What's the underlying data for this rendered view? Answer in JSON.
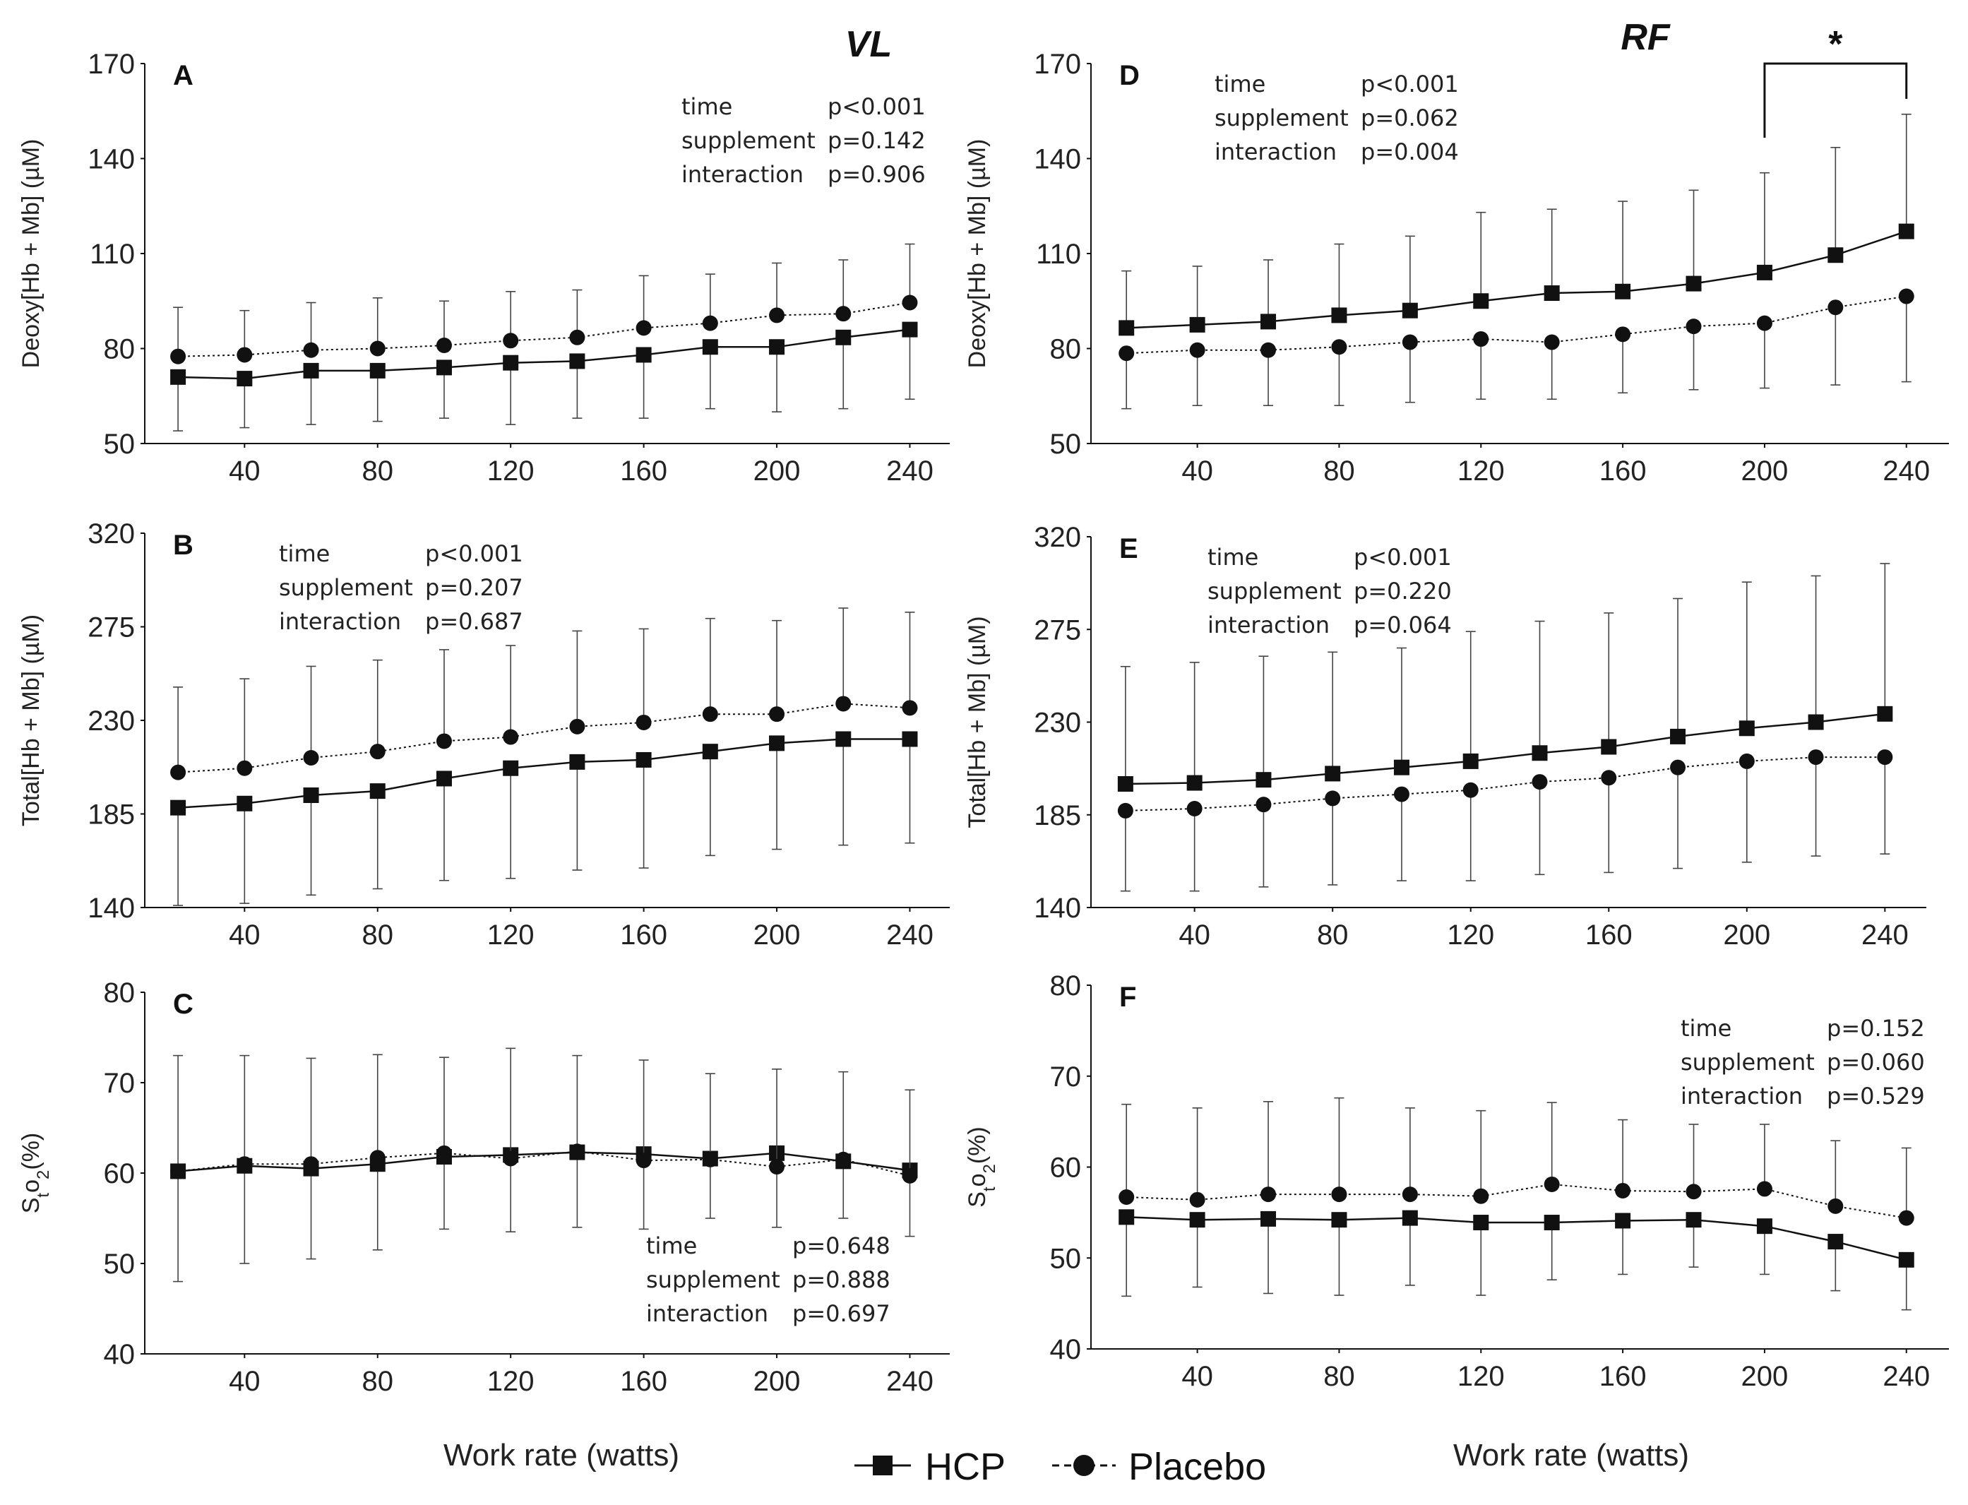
{
  "group_titles": {
    "vl": "VL",
    "rf": "RF"
  },
  "x_title_left": "Work rate (watts)",
  "x_title_right": "Work rate (watts)",
  "legend": {
    "hcp_label": "HCP",
    "placebo_label": "Placebo"
  },
  "chart_data": [
    {
      "id": "A",
      "type": "line",
      "letter": "A",
      "ylabel": "Deoxy[Hb + Mb] (µM)",
      "ylim": [
        50,
        170
      ],
      "yticks": [
        50,
        80,
        110,
        140,
        170
      ],
      "xlim": [
        10,
        252
      ],
      "xticks": [
        40,
        80,
        120,
        160,
        200,
        240
      ],
      "x": [
        20,
        40,
        60,
        80,
        100,
        120,
        140,
        160,
        180,
        200,
        220,
        240
      ],
      "stats": {
        "corner": "top-right",
        "rows": [
          [
            "time",
            "p<0.001"
          ],
          [
            "supplement",
            "p=0.142"
          ],
          [
            "interaction",
            "p=0.906"
          ]
        ]
      },
      "series": [
        {
          "name": "HCP",
          "marker": "square",
          "dash": "solid",
          "values": [
            71,
            70.5,
            73,
            73,
            74,
            75.5,
            76,
            78,
            80.5,
            80.5,
            83.5,
            86
          ],
          "err_lower": [
            54,
            55,
            56,
            57,
            58,
            56,
            58,
            58,
            61,
            60,
            61,
            64
          ]
        },
        {
          "name": "Placebo",
          "marker": "circle",
          "dash": "dotted",
          "values": [
            77.5,
            78,
            79.5,
            80,
            81,
            82.5,
            83.5,
            86.5,
            88,
            90.5,
            91,
            94.5
          ],
          "err_upper": [
            93,
            92,
            94.5,
            96,
            95,
            98,
            98.5,
            103,
            103.5,
            107,
            108,
            113
          ]
        }
      ]
    },
    {
      "id": "B",
      "type": "line",
      "letter": "B",
      "ylabel": "Total[Hb + Mb] (µM)",
      "ylim": [
        140,
        320
      ],
      "yticks": [
        140,
        185,
        230,
        275,
        320
      ],
      "xlim": [
        10,
        252
      ],
      "xticks": [
        40,
        80,
        120,
        160,
        200,
        240
      ],
      "x": [
        20,
        40,
        60,
        80,
        100,
        120,
        140,
        160,
        180,
        200,
        220,
        240
      ],
      "stats": {
        "corner": "top-left",
        "rows": [
          [
            "time",
            "p<0.001"
          ],
          [
            "supplement",
            "p=0.207"
          ],
          [
            "interaction",
            "p=0.687"
          ]
        ]
      },
      "series": [
        {
          "name": "HCP",
          "marker": "square",
          "dash": "solid",
          "values": [
            188,
            190,
            194,
            196,
            202,
            207,
            210,
            211,
            215,
            219,
            221,
            221
          ],
          "err_lower": [
            141,
            142,
            146,
            149,
            153,
            154,
            158,
            159,
            165,
            168,
            170,
            171
          ]
        },
        {
          "name": "Placebo",
          "marker": "circle",
          "dash": "dotted",
          "values": [
            205,
            207,
            212,
            215,
            220,
            222,
            227,
            229,
            233,
            233,
            238,
            236
          ],
          "err_upper": [
            246,
            250,
            256,
            259,
            264,
            266,
            273,
            274,
            279,
            278,
            284,
            282
          ]
        }
      ]
    },
    {
      "id": "C",
      "type": "line",
      "letter": "C",
      "ylabel": "StO2(%)",
      "ylim": [
        40,
        80
      ],
      "yticks": [
        40,
        50,
        60,
        70,
        80
      ],
      "xlim": [
        10,
        252
      ],
      "xticks": [
        40,
        80,
        120,
        160,
        200,
        240
      ],
      "x": [
        20,
        40,
        60,
        80,
        100,
        120,
        140,
        160,
        180,
        200,
        220,
        240
      ],
      "stats": {
        "corner": "bottom-right",
        "rows": [
          [
            "time",
            "p=0.648"
          ],
          [
            "supplement",
            "p=0.888"
          ],
          [
            "interaction",
            "p=0.697"
          ]
        ]
      },
      "series": [
        {
          "name": "HCP",
          "marker": "square",
          "dash": "solid",
          "values": [
            60.2,
            60.8,
            60.5,
            61,
            61.8,
            62,
            62.3,
            62.1,
            61.6,
            62.2,
            61.3,
            60.3
          ],
          "err_lower": [
            48,
            50,
            50.5,
            51.5,
            53.8,
            53.5,
            54,
            53.8,
            55,
            54,
            55,
            53
          ]
        },
        {
          "name": "Placebo",
          "marker": "circle",
          "dash": "dotted",
          "values": [
            60.2,
            61,
            61,
            61.7,
            62.2,
            61.6,
            62.4,
            61.4,
            61.5,
            60.7,
            61.5,
            59.7
          ],
          "err_upper": [
            73,
            73,
            72.7,
            73.1,
            72.8,
            73.8,
            73,
            72.5,
            71,
            71.5,
            71.2,
            69.2
          ]
        }
      ]
    },
    {
      "id": "D",
      "type": "line",
      "letter": "D",
      "ylabel": "Deoxy[Hb + Mb] (µM)",
      "ylim": [
        50,
        170
      ],
      "yticks": [
        50,
        80,
        110,
        140,
        170
      ],
      "xlim": [
        10,
        252
      ],
      "xticks": [
        40,
        80,
        120,
        160,
        200,
        240
      ],
      "x": [
        20,
        40,
        60,
        80,
        100,
        120,
        140,
        160,
        180,
        200,
        220,
        240
      ],
      "stats": {
        "corner": "top-left",
        "rows": [
          [
            "time",
            "p<0.001"
          ],
          [
            "supplement",
            "p=0.062"
          ],
          [
            "interaction",
            "p=0.004"
          ]
        ]
      },
      "significance": {
        "from": 200,
        "to": 240,
        "label": "*"
      },
      "series": [
        {
          "name": "HCP",
          "marker": "square",
          "dash": "solid",
          "values": [
            86.5,
            87.5,
            88.5,
            90.5,
            92,
            95,
            97.5,
            98,
            100.5,
            104,
            109.5,
            117
          ],
          "err_upper": [
            104.5,
            106,
            108,
            113,
            115.5,
            123,
            124,
            126.5,
            130,
            135.5,
            143.5,
            154
          ]
        },
        {
          "name": "Placebo",
          "marker": "circle",
          "dash": "dotted",
          "values": [
            78.5,
            79.5,
            79.5,
            80.5,
            82,
            83,
            82,
            84.5,
            87,
            88,
            93,
            96.5
          ],
          "err_lower": [
            61,
            62,
            62,
            62,
            63,
            64,
            64,
            66,
            67,
            67.5,
            68.5,
            69.5
          ]
        }
      ]
    },
    {
      "id": "E",
      "type": "line",
      "letter": "E",
      "ylabel": "Total[Hb + Mb] (µM)",
      "ylim": [
        140,
        320
      ],
      "yticks": [
        140,
        185,
        230,
        275,
        320
      ],
      "xlim": [
        10,
        252
      ],
      "xticks": [
        40,
        80,
        120,
        160,
        200,
        240
      ],
      "x": [
        20,
        40,
        60,
        80,
        100,
        120,
        140,
        160,
        180,
        200,
        220,
        240
      ],
      "stats": {
        "corner": "top-left",
        "rows": [
          [
            "time",
            "p<0.001"
          ],
          [
            "supplement",
            "p=0.220"
          ],
          [
            "interaction",
            "p=0.064"
          ]
        ]
      },
      "series": [
        {
          "name": "HCP",
          "marker": "square",
          "dash": "solid",
          "values": [
            200,
            200.5,
            202,
            205,
            208,
            211,
            215,
            218,
            223,
            227,
            230,
            234
          ],
          "err_upper": [
            257,
            259,
            262,
            264,
            266,
            274,
            279,
            283,
            290,
            298,
            301,
            307
          ]
        },
        {
          "name": "Placebo",
          "marker": "circle",
          "dash": "dotted",
          "values": [
            187,
            188,
            190,
            193,
            195,
            197,
            201,
            203,
            208,
            211,
            213,
            213
          ],
          "err_lower": [
            148,
            148,
            150,
            151,
            153,
            153,
            156,
            157,
            159,
            162,
            165,
            166
          ]
        }
      ]
    },
    {
      "id": "F",
      "type": "line",
      "letter": "F",
      "ylabel": "StO2(%)",
      "ylim": [
        40,
        80
      ],
      "yticks": [
        40,
        50,
        60,
        70,
        80
      ],
      "xlim": [
        10,
        252
      ],
      "xticks": [
        40,
        80,
        120,
        160,
        200,
        240
      ],
      "x": [
        20,
        40,
        60,
        80,
        100,
        120,
        140,
        160,
        180,
        200,
        220,
        240
      ],
      "stats": {
        "corner": "top-right",
        "rows": [
          [
            "time",
            "p=0.152"
          ],
          [
            "supplement",
            "p=0.060"
          ],
          [
            "interaction",
            "p=0.529"
          ]
        ]
      },
      "series": [
        {
          "name": "HCP",
          "marker": "square",
          "dash": "solid",
          "values": [
            54.5,
            54.2,
            54.3,
            54.2,
            54.4,
            53.9,
            53.9,
            54.1,
            54.2,
            53.5,
            51.8,
            49.8
          ],
          "err_lower": [
            45.8,
            46.8,
            46.1,
            45.9,
            47,
            45.9,
            47.6,
            48.2,
            49,
            48.2,
            46.4,
            44.3
          ]
        },
        {
          "name": "Placebo",
          "marker": "circle",
          "dash": "dotted",
          "values": [
            56.7,
            56.4,
            57,
            57,
            57,
            56.8,
            58.1,
            57.4,
            57.3,
            57.6,
            55.7,
            54.4
          ],
          "err_upper": [
            66.9,
            66.5,
            67.2,
            67.6,
            66.5,
            66.2,
            67.1,
            65.2,
            64.7,
            64.7,
            62.9,
            62.1
          ]
        }
      ]
    }
  ]
}
